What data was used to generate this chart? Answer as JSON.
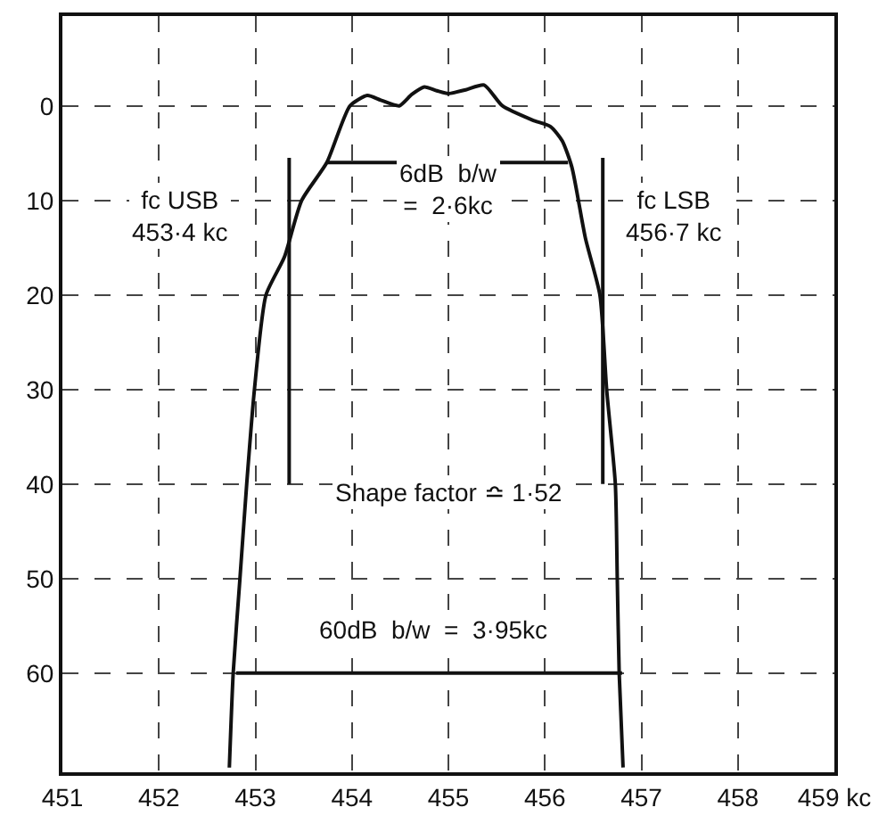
{
  "chart_data": {
    "type": "line",
    "xlim": [
      451,
      459
    ],
    "ylim": [
      70.5,
      -9.5
    ],
    "xticks": [
      451,
      452,
      453,
      454,
      455,
      456,
      457,
      458,
      {
        "value": 459,
        "label": "459 kc"
      }
    ],
    "yticks": [
      0,
      10,
      20,
      30,
      40,
      50,
      60
    ],
    "grid": true,
    "marker": "none",
    "line_style": "solid",
    "series": [
      {
        "color": "#111111",
        "x": [
          452.73,
          452.77,
          452.84,
          452.91,
          452.99,
          453.11,
          453.3,
          453.48,
          453.74,
          453.98,
          454.16,
          454.3,
          454.49,
          454.62,
          454.75,
          454.88,
          455.0,
          455.18,
          455.37,
          455.56,
          455.87,
          456.06,
          456.18,
          456.28,
          456.42,
          456.57,
          456.64,
          456.73,
          456.75,
          456.77,
          456.81
        ],
        "values": [
          70,
          60,
          50,
          40,
          30,
          20,
          16,
          10,
          6,
          0,
          -1.1,
          -0.6,
          0,
          -1.2,
          -2,
          -1.6,
          -1.3,
          -1.7,
          -2.2,
          0,
          1.5,
          2.2,
          3.7,
          6.5,
          14,
          20,
          30,
          40,
          50,
          60,
          70
        ]
      },
      {
        "color": "#111111",
        "x": [
          453.74,
          456.24
        ],
        "values": [
          6,
          6
        ]
      },
      {
        "color": "#111111",
        "x": [
          452.8,
          456.8
        ],
        "values": [
          60,
          60
        ]
      },
      {
        "color": "#111111",
        "x": [
          453.35,
          453.35
        ],
        "values": [
          5.5,
          40
        ]
      },
      {
        "color": "#111111",
        "x": [
          456.6,
          456.6
        ],
        "values": [
          5.5,
          40
        ]
      }
    ],
    "annotations": [
      "fc USB\n453·4 kc",
      "fc LSB\n456·7 kc",
      "6dB  b/w\n=  2·6kc",
      "Shape factor ≏ 1·52",
      "60dB  b/w  =  3·95kc"
    ]
  }
}
